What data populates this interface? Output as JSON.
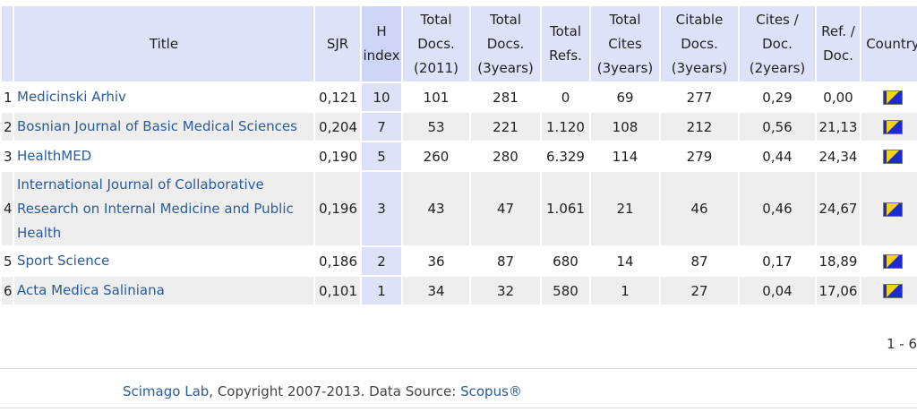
{
  "headers": {
    "title": "Title",
    "sjr": "SJR",
    "h_index": "H index",
    "total_docs_2011": "Total Docs. (2011)",
    "total_docs_3years": "Total Docs. (3years)",
    "total_refs": "Total Refs.",
    "total_cites_3years": "Total Cites (3years)",
    "citable_docs_3years": "Citable Docs. (3years)",
    "cites_per_doc_2years": "Cites / Doc. (2years)",
    "ref_per_doc": "Ref. / Doc.",
    "country": "Country"
  },
  "rows": [
    {
      "num": "1",
      "title": "Medicinski Arhiv",
      "sjr": "0,121",
      "h": "10",
      "docs2011": "101",
      "docs3y": "281",
      "refs": "0",
      "cites3y": "69",
      "citable3y": "277",
      "citesdoc": "0,29",
      "refdoc": "0,00",
      "flag": "bosnia-flag-icon"
    },
    {
      "num": "2",
      "title": "Bosnian Journal of Basic Medical Sciences",
      "sjr": "0,204",
      "h": "7",
      "docs2011": "53",
      "docs3y": "221",
      "refs": "1.120",
      "cites3y": "108",
      "citable3y": "212",
      "citesdoc": "0,56",
      "refdoc": "21,13",
      "flag": "bosnia-flag-icon"
    },
    {
      "num": "3",
      "title": "HealthMED",
      "sjr": "0,190",
      "h": "5",
      "docs2011": "260",
      "docs3y": "280",
      "refs": "6.329",
      "cites3y": "114",
      "citable3y": "279",
      "citesdoc": "0,44",
      "refdoc": "24,34",
      "flag": "bosnia-flag-icon"
    },
    {
      "num": "4",
      "title": "International Journal of Collaborative Research on Internal Medicine and Public Health",
      "sjr": "0,196",
      "h": "3",
      "docs2011": "43",
      "docs3y": "47",
      "refs": "1.061",
      "cites3y": "21",
      "citable3y": "46",
      "citesdoc": "0,46",
      "refdoc": "24,67",
      "flag": "bosnia-flag-icon"
    },
    {
      "num": "5",
      "title": "Sport Science",
      "sjr": "0,186",
      "h": "2",
      "docs2011": "36",
      "docs3y": "87",
      "refs": "680",
      "cites3y": "14",
      "citable3y": "87",
      "citesdoc": "0,17",
      "refdoc": "18,89",
      "flag": "bosnia-flag-icon"
    },
    {
      "num": "6",
      "title": "Acta Medica Saliniana",
      "sjr": "0,101",
      "h": "1",
      "docs2011": "34",
      "docs3y": "32",
      "refs": "580",
      "cites3y": "1",
      "citable3y": "27",
      "citesdoc": "0,04",
      "refdoc": "17,06",
      "flag": "bosnia-flag-icon"
    }
  ],
  "pager": "1 - 6",
  "footer": {
    "lab": "Scimago Lab",
    "copyright": ", Copyright 2007-2013. Data Source: ",
    "source": "Scopus®"
  },
  "colors": {
    "header_bg": "#dde2f9",
    "link": "#2a5b9c",
    "row_alt": "#eeeeee"
  }
}
